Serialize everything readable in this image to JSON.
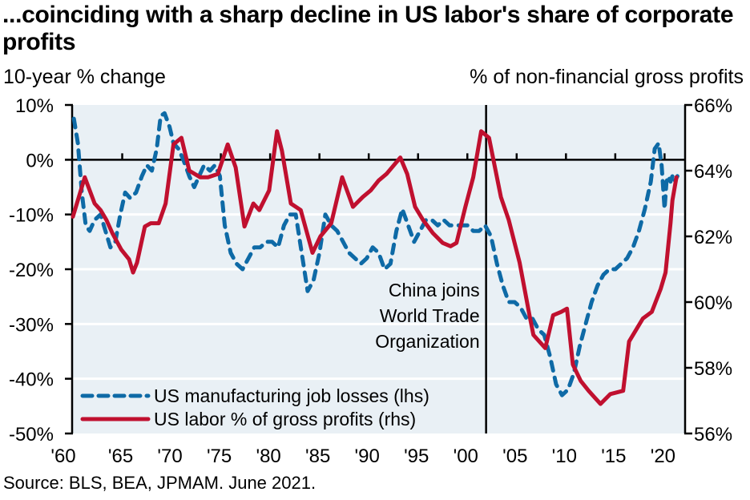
{
  "header": {
    "title": "...coinciding with a sharp decline in US labor's share of corporate profits",
    "left_unit": "10-year % change",
    "right_unit": "% of non-financial gross profits"
  },
  "footer": {
    "source": "Source: BLS, BEA, JPMAM. June 2021."
  },
  "colors": {
    "blue": "#0e6aa6",
    "red": "#c0102f",
    "plot_bg": "#e9f0f5",
    "grid": "#ffffff"
  },
  "chart_data": {
    "type": "line",
    "title": "...coinciding with a sharp decline in US labor's share of corporate profits",
    "xlabel": "",
    "ylabel": "10-year % change",
    "ylabel_right": "% of non-financial gross profits",
    "xlim": [
      1960,
      2022
    ],
    "ylim": [
      -50,
      10
    ],
    "ylim_right": [
      56,
      66
    ],
    "x_ticks": [
      1960,
      1965,
      1970,
      1975,
      1980,
      1985,
      1990,
      1995,
      2000,
      2005,
      2010,
      2015,
      2020
    ],
    "x_tick_labels": [
      "'60",
      "'65",
      "'70",
      "'75",
      "'80",
      "'85",
      "'90",
      "'95",
      "'00",
      "'05",
      "'10",
      "'15",
      "'20"
    ],
    "y_ticks": [
      10,
      0,
      -10,
      -20,
      -30,
      -40,
      -50
    ],
    "y_tick_labels": [
      "10%",
      "0%",
      "-10%",
      "-20%",
      "-30%",
      "-40%",
      "-50%"
    ],
    "y_ticks_right": [
      66,
      64,
      62,
      60,
      58,
      56
    ],
    "y_tick_labels_right": [
      "66%",
      "64%",
      "62%",
      "60%",
      "58%",
      "56%"
    ],
    "grid": true,
    "legend_position": "bottom-left",
    "annotation": {
      "x": 2001.9,
      "lines": [
        "China joins",
        "World Trade",
        "Organization"
      ]
    },
    "series": [
      {
        "name": "US manufacturing job losses (lhs)",
        "axis": "left",
        "style": "dashed",
        "color": "#0e6aa6",
        "x": [
          1960.1,
          1960.5,
          1960.9,
          1961.3,
          1961.7,
          1962.2,
          1962.8,
          1963.3,
          1963.8,
          1964.3,
          1964.8,
          1965.3,
          1965.8,
          1966.4,
          1967.0,
          1967.5,
          1968.0,
          1968.5,
          1968.9,
          1969.3,
          1969.8,
          1970.2,
          1970.7,
          1971.2,
          1971.8,
          1972.3,
          1972.8,
          1973.3,
          1973.9,
          1974.4,
          1974.9,
          1975.4,
          1976.0,
          1976.6,
          1977.2,
          1977.8,
          1978.4,
          1979.0,
          1979.6,
          1980.2,
          1980.8,
          1981.4,
          1982.0,
          1982.6,
          1983.2,
          1983.8,
          1984.4,
          1985.0,
          1985.6,
          1986.2,
          1986.8,
          1987.4,
          1988.0,
          1988.6,
          1989.2,
          1989.8,
          1990.4,
          1991.0,
          1991.6,
          1992.2,
          1992.8,
          1993.4,
          1994.0,
          1994.6,
          1995.2,
          1995.8,
          1996.4,
          1997.0,
          1997.6,
          1998.2,
          1998.8,
          1999.4,
          2000.0,
          2000.6,
          2001.2,
          2001.8,
          2002.4,
          2003.0,
          2003.6,
          2004.2,
          2004.8,
          2005.4,
          2006.0,
          2006.6,
          2007.2,
          2007.8,
          2008.4,
          2009.0,
          2009.6,
          2010.2,
          2010.8,
          2011.4,
          2012.0,
          2012.6,
          2013.2,
          2013.8,
          2014.4,
          2015.0,
          2015.6,
          2016.2,
          2016.8,
          2017.4,
          2018.0,
          2018.6,
          2019.0,
          2019.4,
          2019.7,
          2020.0,
          2020.2,
          2020.4,
          2020.6,
          2020.8,
          2021.0,
          2021.3
        ],
        "values": [
          7.5,
          3,
          -6,
          -12,
          -13,
          -11,
          -10,
          -13,
          -16,
          -15,
          -10,
          -6,
          -7,
          -6,
          -3,
          -1,
          -2,
          2,
          8,
          8.5,
          6,
          3,
          2,
          0,
          -3,
          -5,
          -3,
          -1,
          -2,
          -1,
          -3,
          -12,
          -17,
          -19,
          -20,
          -18,
          -16,
          -16,
          -15,
          -15,
          -16,
          -12,
          -10,
          -10,
          -17,
          -24,
          -22,
          -17,
          -10,
          -12,
          -13,
          -15,
          -17,
          -18,
          -19,
          -18,
          -16,
          -17,
          -20,
          -19,
          -13,
          -9,
          -12,
          -15,
          -13,
          -11,
          -11,
          -12,
          -11,
          -12,
          -12,
          -12,
          -12,
          -13,
          -13,
          -12,
          -14,
          -19,
          -23,
          -26,
          -26,
          -27,
          -29,
          -29,
          -31,
          -32,
          -36,
          -41,
          -43,
          -42,
          -39,
          -34,
          -30,
          -26,
          -23,
          -21,
          -20,
          -20,
          -19,
          -18,
          -16,
          -13,
          -9,
          -4,
          2,
          3,
          -1,
          -9,
          -4,
          -3,
          -4,
          -3,
          -4,
          -3
        ],
        "x_note": "years"
      },
      {
        "name": "US labor % of gross profits (rhs)",
        "axis": "right",
        "style": "solid",
        "color": "#c0102f",
        "x": [
          1960.0,
          1961.2,
          1962.2,
          1962.8,
          1963.4,
          1964.0,
          1964.9,
          1965.7,
          1966.1,
          1966.5,
          1967.3,
          1967.9,
          1968.7,
          1969.4,
          1970.2,
          1971.0,
          1971.8,
          1972.9,
          1973.7,
          1974.7,
          1975.7,
          1976.5,
          1977.4,
          1978.3,
          1978.9,
          1979.9,
          1980.7,
          1981.2,
          1982.1,
          1983.1,
          1984.3,
          1985.1,
          1986.2,
          1987.3,
          1988.4,
          1989.4,
          1990.2,
          1991.0,
          1991.8,
          1993.2,
          1993.9,
          1994.7,
          1995.5,
          1996.5,
          1997.5,
          1998.3,
          1998.9,
          1999.8,
          2000.6,
          2001.4,
          2002.2,
          2003.4,
          2004.2,
          2005.3,
          2006.3,
          2006.7,
          2007.9,
          2008.7,
          2009.5,
          2010.1,
          2010.7,
          2011.5,
          2012.3,
          2012.9,
          2013.5,
          2014.5,
          2015.8,
          2016.4,
          2017.8,
          2018.7,
          2019.6,
          2020.1,
          2020.6,
          2020.8,
          2021.2
        ],
        "values": [
          62.6,
          63.8,
          63.0,
          62.8,
          62.5,
          62.1,
          61.6,
          61.3,
          60.9,
          61.2,
          62.3,
          62.4,
          62.4,
          63.0,
          64.8,
          65.0,
          64.0,
          63.8,
          63.8,
          63.9,
          64.8,
          64.1,
          62.3,
          63.0,
          62.8,
          63.4,
          65.2,
          64.6,
          63.0,
          62.8,
          61.5,
          62.0,
          62.4,
          63.8,
          62.9,
          63.2,
          63.4,
          63.7,
          63.9,
          64.4,
          63.9,
          62.9,
          62.5,
          62.1,
          61.8,
          61.7,
          61.8,
          62.9,
          63.8,
          65.2,
          65.0,
          63.2,
          62.5,
          61.2,
          59.6,
          59.0,
          58.6,
          59.6,
          59.7,
          59.8,
          58.1,
          57.6,
          57.3,
          57.1,
          56.9,
          57.2,
          57.3,
          58.8,
          59.5,
          59.7,
          60.4,
          60.9,
          62.4,
          63.1,
          63.8
        ]
      }
    ]
  }
}
